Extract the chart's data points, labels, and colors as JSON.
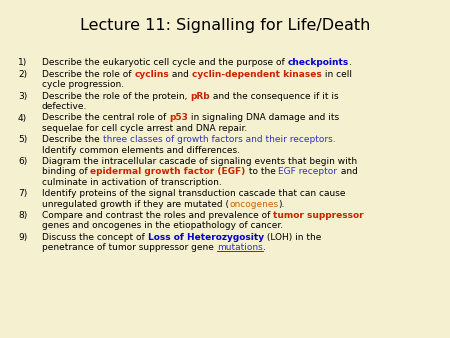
{
  "title": "Lecture 11: Signalling for Life/Death",
  "bg_color": "#f5f0d0",
  "title_color": "#000000",
  "title_fontsize": 11.5,
  "body_fontsize": 6.5,
  "items": [
    {
      "num": "1)",
      "lines": [
        [
          {
            "text": "Describe the eukaryotic cell cycle and the purpose of ",
            "color": "#000000",
            "bold": false,
            "underline": false
          },
          {
            "text": "checkpoints",
            "color": "#0000cc",
            "bold": true,
            "underline": false
          },
          {
            "text": ".",
            "color": "#000000",
            "bold": false,
            "underline": false
          }
        ]
      ]
    },
    {
      "num": "2)",
      "lines": [
        [
          {
            "text": "Describe the role of ",
            "color": "#000000",
            "bold": false,
            "underline": false
          },
          {
            "text": "cyclins",
            "color": "#cc2200",
            "bold": true,
            "underline": false
          },
          {
            "text": " and ",
            "color": "#000000",
            "bold": false,
            "underline": false
          },
          {
            "text": "cyclin-dependent kinases",
            "color": "#cc2200",
            "bold": true,
            "underline": false
          },
          {
            "text": " in cell",
            "color": "#000000",
            "bold": false,
            "underline": false
          }
        ],
        [
          {
            "text": "cycle progression.",
            "color": "#000000",
            "bold": false,
            "underline": false
          }
        ]
      ]
    },
    {
      "num": "3)",
      "lines": [
        [
          {
            "text": "Describe the role of the protein, ",
            "color": "#000000",
            "bold": false,
            "underline": false
          },
          {
            "text": "pRb",
            "color": "#cc2200",
            "bold": true,
            "underline": false
          },
          {
            "text": " and the consequence if it is",
            "color": "#000000",
            "bold": false,
            "underline": false
          }
        ],
        [
          {
            "text": "defective.",
            "color": "#000000",
            "bold": false,
            "underline": false
          }
        ]
      ]
    },
    {
      "num": "4)",
      "lines": [
        [
          {
            "text": "Describe the central role of ",
            "color": "#000000",
            "bold": false,
            "underline": false
          },
          {
            "text": "p53",
            "color": "#cc2200",
            "bold": true,
            "underline": false
          },
          {
            "text": " in signaling DNA damage and its",
            "color": "#000000",
            "bold": false,
            "underline": false
          }
        ],
        [
          {
            "text": "sequelae for cell cycle arrest and DNA repair.",
            "color": "#000000",
            "bold": false,
            "underline": false
          }
        ]
      ]
    },
    {
      "num": "5)",
      "lines": [
        [
          {
            "text": "Describe the ",
            "color": "#000000",
            "bold": false,
            "underline": false
          },
          {
            "text": "three classes of growth factors and their receptors.",
            "color": "#3333bb",
            "bold": false,
            "underline": false
          }
        ],
        [
          {
            "text": "Identify common elements and differences.",
            "color": "#000000",
            "bold": false,
            "underline": false
          }
        ]
      ]
    },
    {
      "num": "6)",
      "lines": [
        [
          {
            "text": "Diagram the intracellular cascade of signaling events that begin with",
            "color": "#000000",
            "bold": false,
            "underline": false
          }
        ],
        [
          {
            "text": "binding of ",
            "color": "#000000",
            "bold": false,
            "underline": false
          },
          {
            "text": "epidermal growth factor (EGF)",
            "color": "#cc2200",
            "bold": true,
            "underline": false
          },
          {
            "text": " to the ",
            "color": "#000000",
            "bold": false,
            "underline": false
          },
          {
            "text": "EGF receptor",
            "color": "#3333bb",
            "bold": false,
            "underline": false
          },
          {
            "text": " and",
            "color": "#000000",
            "bold": false,
            "underline": false
          }
        ],
        [
          {
            "text": "culminate in activation of transcription.",
            "color": "#000000",
            "bold": false,
            "underline": false
          }
        ]
      ]
    },
    {
      "num": "7)",
      "lines": [
        [
          {
            "text": "Identify proteins of the signal transduction cascade that can cause",
            "color": "#000000",
            "bold": false,
            "underline": false
          }
        ],
        [
          {
            "text": "unregulated growth if they are mutated (",
            "color": "#000000",
            "bold": false,
            "underline": false
          },
          {
            "text": "oncogenes",
            "color": "#cc6600",
            "bold": false,
            "underline": false
          },
          {
            "text": ").",
            "color": "#000000",
            "bold": false,
            "underline": false
          }
        ]
      ]
    },
    {
      "num": "8)",
      "lines": [
        [
          {
            "text": "Compare and contrast the roles and prevalence of ",
            "color": "#000000",
            "bold": false,
            "underline": false
          },
          {
            "text": "tumor suppressor",
            "color": "#cc2200",
            "bold": true,
            "underline": false
          }
        ],
        [
          {
            "text": "genes and oncogenes in the etiopathology of cancer.",
            "color": "#000000",
            "bold": false,
            "underline": false
          }
        ]
      ]
    },
    {
      "num": "9)",
      "lines": [
        [
          {
            "text": "Discuss the concept of ",
            "color": "#000000",
            "bold": false,
            "underline": false
          },
          {
            "text": "Loss of Heterozygosity",
            "color": "#0000cc",
            "bold": true,
            "underline": false
          },
          {
            "text": " (LOH) in the",
            "color": "#000000",
            "bold": false,
            "underline": false
          }
        ],
        [
          {
            "text": "penetrance of tumor suppressor gene ",
            "color": "#000000",
            "bold": false,
            "underline": false
          },
          {
            "text": "mutations",
            "color": "#3333bb",
            "bold": false,
            "underline": true
          },
          {
            "text": ".",
            "color": "#000000",
            "bold": false,
            "underline": false
          }
        ]
      ]
    }
  ]
}
